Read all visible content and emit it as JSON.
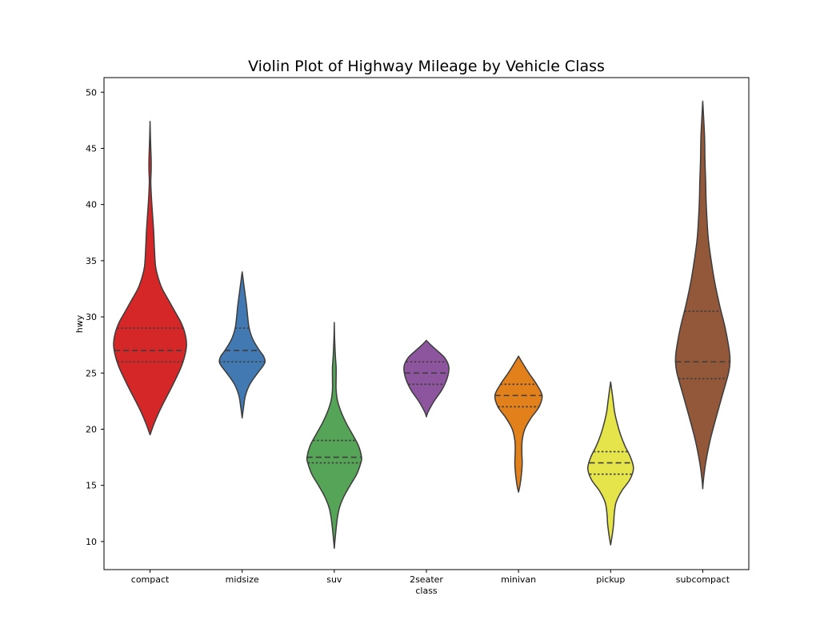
{
  "chart_data": {
    "type": "violin",
    "title": "Violin Plot of Highway Mileage by Vehicle Class",
    "xlabel": "class",
    "ylabel": "hwy",
    "ylim": [
      7.5,
      51.3
    ],
    "yticks": [
      10,
      15,
      20,
      25,
      30,
      35,
      40,
      45,
      50
    ],
    "categories": [
      "compact",
      "midsize",
      "suv",
      "2seater",
      "minivan",
      "pickup",
      "subcompact"
    ],
    "grid": false,
    "inner": "quartile",
    "violins": [
      {
        "category": "compact",
        "color": "#d62728",
        "quartiles": [
          26,
          27,
          29
        ],
        "density": [
          [
            19.5,
            0.0
          ],
          [
            20.5,
            0.11
          ],
          [
            21.5,
            0.24
          ],
          [
            22.5,
            0.39
          ],
          [
            23.5,
            0.55
          ],
          [
            24.5,
            0.7
          ],
          [
            25.5,
            0.84
          ],
          [
            26.5,
            0.94
          ],
          [
            27.5,
            0.99
          ],
          [
            28.5,
            0.95
          ],
          [
            29.5,
            0.84
          ],
          [
            30.5,
            0.67
          ],
          [
            31.5,
            0.5
          ],
          [
            32.5,
            0.33
          ],
          [
            33.5,
            0.22
          ],
          [
            34.5,
            0.15
          ],
          [
            36.0,
            0.12
          ],
          [
            37.5,
            0.1
          ],
          [
            39.0,
            0.07
          ],
          [
            40.5,
            0.04
          ],
          [
            42.0,
            0.02
          ],
          [
            43.0,
            0.03
          ],
          [
            44.0,
            0.03
          ],
          [
            45.0,
            0.02
          ],
          [
            46.0,
            0.01
          ],
          [
            47.4,
            0.0
          ]
        ]
      },
      {
        "category": "midsize",
        "color": "#4279b3",
        "quartiles": [
          26,
          27,
          29
        ],
        "density": [
          [
            21.0,
            0.0
          ],
          [
            22.0,
            0.04
          ],
          [
            23.0,
            0.09
          ],
          [
            24.0,
            0.21
          ],
          [
            25.0,
            0.42
          ],
          [
            25.6,
            0.56
          ],
          [
            26.0,
            0.62
          ],
          [
            26.5,
            0.58
          ],
          [
            27.0,
            0.47
          ],
          [
            28.0,
            0.29
          ],
          [
            29.0,
            0.19
          ],
          [
            30.0,
            0.15
          ],
          [
            31.0,
            0.12
          ],
          [
            32.0,
            0.08
          ],
          [
            33.0,
            0.04
          ],
          [
            34.0,
            0.0
          ]
        ]
      },
      {
        "category": "suv",
        "color": "#56a457",
        "quartiles": [
          17,
          17.5,
          19
        ],
        "density": [
          [
            9.4,
            0.0
          ],
          [
            10.5,
            0.03
          ],
          [
            12.0,
            0.08
          ],
          [
            13.0,
            0.14
          ],
          [
            14.0,
            0.26
          ],
          [
            15.0,
            0.43
          ],
          [
            16.0,
            0.61
          ],
          [
            17.0,
            0.72
          ],
          [
            17.5,
            0.74
          ],
          [
            18.5,
            0.66
          ],
          [
            19.5,
            0.5
          ],
          [
            20.5,
            0.33
          ],
          [
            21.5,
            0.19
          ],
          [
            22.5,
            0.09
          ],
          [
            23.5,
            0.05
          ],
          [
            24.5,
            0.05
          ],
          [
            25.5,
            0.05
          ],
          [
            26.5,
            0.03
          ],
          [
            28.0,
            0.01
          ],
          [
            29.5,
            0.0
          ]
        ]
      },
      {
        "category": "2seater",
        "color": "#8e559f",
        "quartiles": [
          24,
          25,
          26
        ],
        "density": [
          [
            21.1,
            0.0
          ],
          [
            21.5,
            0.04
          ],
          [
            22.5,
            0.21
          ],
          [
            23.5,
            0.42
          ],
          [
            24.5,
            0.56
          ],
          [
            25.5,
            0.61
          ],
          [
            26.3,
            0.51
          ],
          [
            27.0,
            0.29
          ],
          [
            27.5,
            0.12
          ],
          [
            27.9,
            0.0
          ]
        ]
      },
      {
        "category": "minivan",
        "color": "#e2801c",
        "quartiles": [
          22,
          23,
          24
        ],
        "density": [
          [
            14.4,
            0.0
          ],
          [
            15.0,
            0.04
          ],
          [
            16.0,
            0.08
          ],
          [
            17.0,
            0.1
          ],
          [
            18.0,
            0.09
          ],
          [
            19.0,
            0.1
          ],
          [
            20.0,
            0.17
          ],
          [
            21.0,
            0.34
          ],
          [
            22.0,
            0.56
          ],
          [
            23.0,
            0.64
          ],
          [
            24.0,
            0.49
          ],
          [
            25.0,
            0.28
          ],
          [
            26.0,
            0.09
          ],
          [
            26.5,
            0.0
          ]
        ]
      },
      {
        "category": "pickup",
        "color": "#e5e54b",
        "quartiles": [
          16,
          17,
          18
        ],
        "density": [
          [
            9.7,
            0.0
          ],
          [
            10.5,
            0.04
          ],
          [
            11.5,
            0.08
          ],
          [
            12.5,
            0.1
          ],
          [
            13.5,
            0.15
          ],
          [
            14.5,
            0.3
          ],
          [
            15.5,
            0.52
          ],
          [
            16.5,
            0.62
          ],
          [
            17.5,
            0.54
          ],
          [
            18.5,
            0.39
          ],
          [
            19.5,
            0.27
          ],
          [
            20.5,
            0.18
          ],
          [
            21.5,
            0.11
          ],
          [
            22.5,
            0.07
          ],
          [
            23.5,
            0.03
          ],
          [
            24.2,
            0.0
          ]
        ]
      },
      {
        "category": "subcompact",
        "color": "#93573a",
        "quartiles": [
          24.5,
          26,
          30.5
        ],
        "density": [
          [
            14.7,
            0.0
          ],
          [
            15.5,
            0.02
          ],
          [
            17.0,
            0.08
          ],
          [
            19.0,
            0.2
          ],
          [
            21.0,
            0.36
          ],
          [
            23.0,
            0.53
          ],
          [
            25.0,
            0.7
          ],
          [
            26.0,
            0.74
          ],
          [
            27.0,
            0.72
          ],
          [
            29.0,
            0.61
          ],
          [
            31.0,
            0.46
          ],
          [
            33.0,
            0.33
          ],
          [
            35.0,
            0.23
          ],
          [
            37.0,
            0.15
          ],
          [
            39.0,
            0.11
          ],
          [
            40.5,
            0.09
          ],
          [
            42.0,
            0.08
          ],
          [
            44.0,
            0.06
          ],
          [
            46.0,
            0.05
          ],
          [
            48.0,
            0.02
          ],
          [
            49.2,
            0.0
          ]
        ]
      }
    ]
  }
}
